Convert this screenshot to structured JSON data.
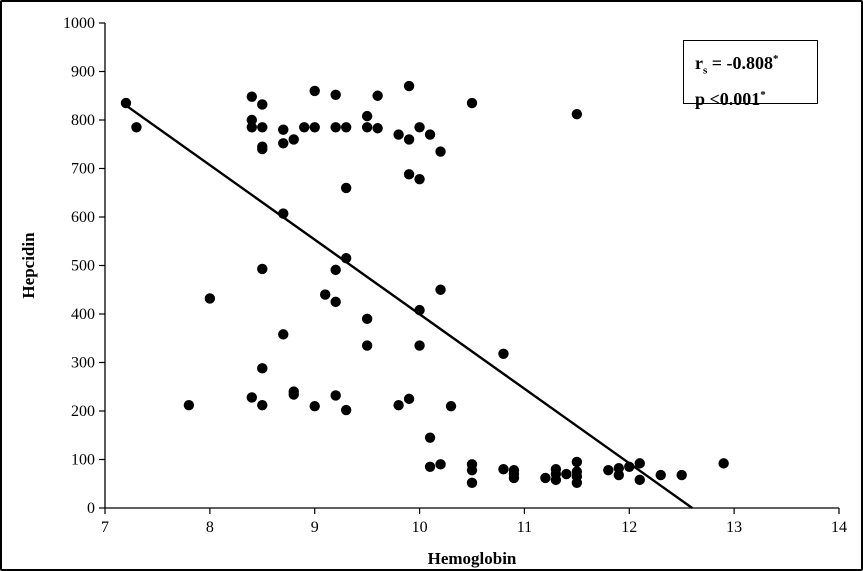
{
  "chart_data": {
    "type": "scatter",
    "xlabel": "Hemoglobin",
    "ylabel": "Hepcidin",
    "xlim": [
      7,
      14
    ],
    "ylim": [
      0,
      1000
    ],
    "xticks": [
      7,
      8,
      9,
      10,
      11,
      12,
      13,
      14
    ],
    "yticks": [
      0,
      100,
      200,
      300,
      400,
      500,
      600,
      700,
      800,
      900,
      1000
    ],
    "grid": false,
    "legend": "none",
    "annotation": {
      "r_symbol": "r",
      "r_subscript": "s",
      "r_text": " = -0.808",
      "r_mark": "*",
      "p_text": "p <0.001",
      "p_mark": "*"
    },
    "trendline": {
      "x": [
        7.2,
        12.6
      ],
      "y": [
        830,
        0
      ]
    },
    "series": [
      {
        "points": [
          [
            7.2,
            835
          ],
          [
            7.3,
            785
          ],
          [
            7.8,
            212
          ],
          [
            8.0,
            432
          ],
          [
            8.4,
            848
          ],
          [
            8.4,
            800
          ],
          [
            8.4,
            785
          ],
          [
            8.4,
            228
          ],
          [
            8.5,
            832
          ],
          [
            8.5,
            785
          ],
          [
            8.5,
            745
          ],
          [
            8.5,
            740
          ],
          [
            8.5,
            493
          ],
          [
            8.5,
            288
          ],
          [
            8.5,
            212
          ],
          [
            8.7,
            780
          ],
          [
            8.7,
            752
          ],
          [
            8.7,
            607
          ],
          [
            8.7,
            358
          ],
          [
            8.8,
            760
          ],
          [
            8.8,
            240
          ],
          [
            8.8,
            234
          ],
          [
            8.9,
            785
          ],
          [
            9.0,
            860
          ],
          [
            9.0,
            785
          ],
          [
            9.0,
            210
          ],
          [
            9.1,
            440
          ],
          [
            9.2,
            852
          ],
          [
            9.2,
            785
          ],
          [
            9.2,
            491
          ],
          [
            9.2,
            425
          ],
          [
            9.2,
            232
          ],
          [
            9.3,
            785
          ],
          [
            9.3,
            660
          ],
          [
            9.3,
            515
          ],
          [
            9.3,
            202
          ],
          [
            9.5,
            808
          ],
          [
            9.5,
            785
          ],
          [
            9.5,
            390
          ],
          [
            9.5,
            335
          ],
          [
            9.6,
            850
          ],
          [
            9.6,
            783
          ],
          [
            9.8,
            770
          ],
          [
            9.8,
            212
          ],
          [
            9.9,
            870
          ],
          [
            9.9,
            760
          ],
          [
            9.9,
            688
          ],
          [
            9.9,
            225
          ],
          [
            10.0,
            785
          ],
          [
            10.0,
            678
          ],
          [
            10.0,
            408
          ],
          [
            10.0,
            335
          ],
          [
            10.1,
            770
          ],
          [
            10.1,
            145
          ],
          [
            10.1,
            85
          ],
          [
            10.2,
            735
          ],
          [
            10.2,
            450
          ],
          [
            10.2,
            90
          ],
          [
            10.3,
            210
          ],
          [
            10.5,
            835
          ],
          [
            10.5,
            90
          ],
          [
            10.5,
            78
          ],
          [
            10.5,
            52
          ],
          [
            10.8,
            318
          ],
          [
            10.8,
            80
          ],
          [
            10.9,
            78
          ],
          [
            10.9,
            70
          ],
          [
            10.9,
            62
          ],
          [
            11.2,
            62
          ],
          [
            11.3,
            80
          ],
          [
            11.3,
            70
          ],
          [
            11.3,
            58
          ],
          [
            11.4,
            70
          ],
          [
            11.5,
            812
          ],
          [
            11.5,
            95
          ],
          [
            11.5,
            75
          ],
          [
            11.5,
            65
          ],
          [
            11.5,
            52
          ],
          [
            11.8,
            78
          ],
          [
            11.9,
            82
          ],
          [
            11.9,
            68
          ],
          [
            12.0,
            85
          ],
          [
            12.1,
            92
          ],
          [
            12.1,
            58
          ],
          [
            12.3,
            68
          ],
          [
            12.5,
            68
          ],
          [
            12.9,
            92
          ]
        ]
      }
    ]
  }
}
